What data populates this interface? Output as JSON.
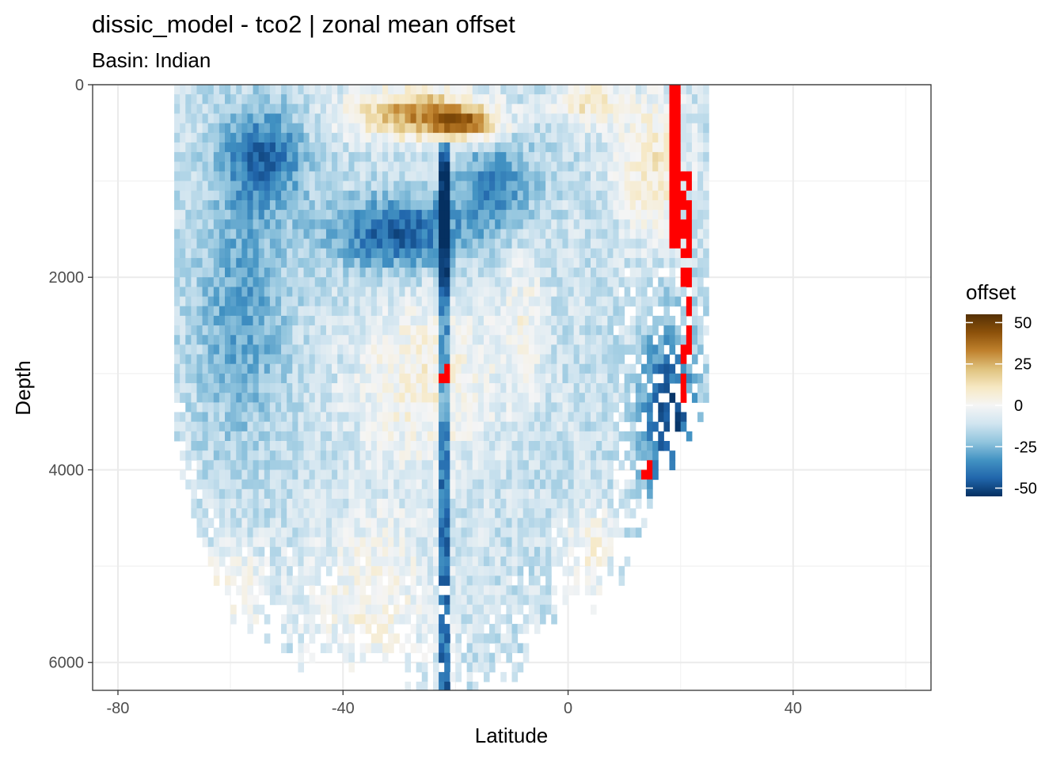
{
  "chart_data": {
    "type": "heatmap",
    "title": "dissic_model - tco2  | zonal mean offset",
    "subtitle": "Basin: Indian",
    "xlabel": "Latitude",
    "ylabel": "Depth",
    "xlim": [
      -84.5,
      64.5
    ],
    "ylim": [
      0,
      6290
    ],
    "y_reversed": true,
    "x_ticks": [
      -80,
      -40,
      0,
      40
    ],
    "x_tick_labels": [
      "-80",
      "-40",
      "0",
      "40"
    ],
    "y_ticks": [
      0,
      2000,
      4000,
      6000
    ],
    "y_tick_labels": [
      "0",
      "2000",
      "4000",
      "6000"
    ],
    "grid": true,
    "legend": {
      "title": "offset",
      "position": "right",
      "breaks": [
        50,
        25,
        0,
        -25,
        -50
      ],
      "labels": [
        "50",
        "25",
        "0",
        "-25",
        "-50"
      ],
      "limits": [
        -55,
        55
      ],
      "palette": [
        "#053061",
        "#2166ac",
        "#4393c3",
        "#92c5de",
        "#d1e5f0",
        "#f5f5f5",
        "#f6e8c3",
        "#dfc27d",
        "#bf812d",
        "#8c510a",
        "#543005"
      ],
      "out_of_range_color": "#ff0000"
    },
    "grid_data": {
      "lat_range": [
        -69.5,
        24.5
      ],
      "lat_step": 1,
      "depth_step": 100,
      "max_depth_by_lat": [
        [
          -69,
          3700
        ],
        [
          -66,
          4500
        ],
        [
          -60,
          5300
        ],
        [
          -56,
          5500
        ],
        [
          -50,
          5700
        ],
        [
          -40,
          5900
        ],
        [
          -30,
          5900
        ],
        [
          -20,
          6200
        ],
        [
          -10,
          6000
        ],
        [
          0,
          5200
        ],
        [
          5,
          5200
        ],
        [
          10,
          4800
        ],
        [
          14,
          4300
        ],
        [
          18,
          3600
        ],
        [
          22,
          3300
        ],
        [
          24,
          3300
        ]
      ],
      "features": [
        {
          "description": "surface positive offset",
          "lat": -27,
          "depth": 250,
          "value": 32
        },
        {
          "description": "intermediate negative band",
          "lat": -30,
          "depth": 1500,
          "value": -38
        },
        {
          "description": "south deep negative",
          "lat": -58,
          "depth": 2000,
          "value": -28
        },
        {
          "description": "mid depth positive",
          "lat": -25,
          "depth": 3000,
          "value": 9
        },
        {
          "description": "northern deep negative",
          "lat": 18,
          "depth": 3200,
          "value": -45
        }
      ],
      "out_of_range_columns": [
        {
          "lat": 19,
          "depth_range": [
            0,
            1650
          ]
        },
        {
          "lat": 21,
          "depth_range": [
            900,
            3300
          ]
        },
        {
          "lat": 14,
          "depth_range": [
            3850,
            4000
          ]
        },
        {
          "lat": -22,
          "depth_range": [
            2900,
            3000
          ]
        }
      ]
    }
  }
}
